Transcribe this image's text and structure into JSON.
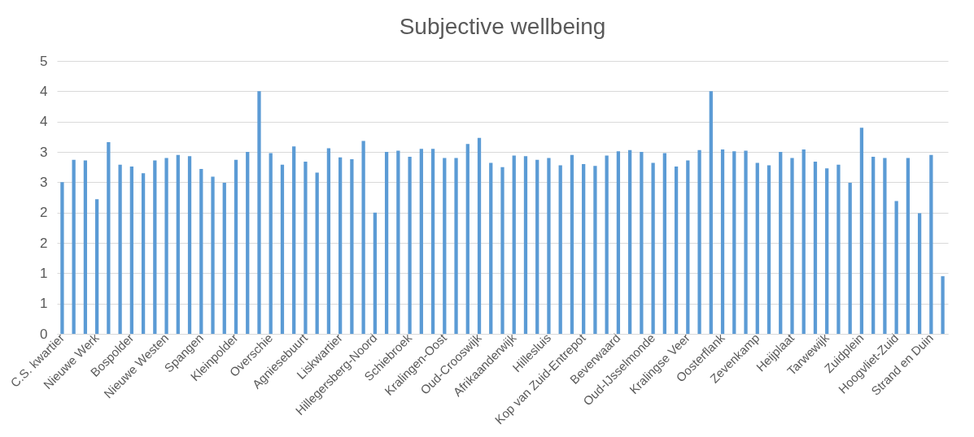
{
  "chart_data": {
    "type": "bar",
    "title": "Subjective wellbeing",
    "color": "#5b9bd5",
    "categories": [
      "C.S. kwartier",
      null,
      null,
      "Nieuwe Werk",
      null,
      null,
      "Bospolder",
      null,
      null,
      "Nieuwe Westen",
      null,
      null,
      "Spangen",
      null,
      null,
      "Kleinpolder",
      null,
      null,
      "Overschie",
      null,
      null,
      "Agniesebuurt",
      null,
      null,
      "Liskwartier",
      null,
      null,
      "Hillegersberg-Noord",
      null,
      null,
      "Schiebroek",
      null,
      null,
      "Kralingen-Oost",
      null,
      null,
      "Oud-Crooswijk",
      null,
      null,
      "Afrikaanderwijk",
      null,
      null,
      "Hillesluis",
      null,
      null,
      "Kop van Zuid-Entrepot",
      null,
      null,
      "Beverwaard",
      null,
      null,
      "Oud-IJsselmonde",
      null,
      null,
      "Kralingse Veer",
      null,
      null,
      "Oosterflank",
      null,
      null,
      "Zevenkamp",
      null,
      null,
      "Heijplaat",
      null,
      null,
      "Tarwewijk",
      null,
      null,
      "Zuidplein",
      null,
      null,
      "Hoogvliet-Zuid",
      null,
      null,
      "Strand en Duin",
      null
    ],
    "values": [
      2.5,
      2.87,
      2.86,
      2.22,
      3.16,
      2.79,
      2.76,
      2.65,
      2.86,
      2.9,
      2.95,
      2.93,
      2.72,
      2.59,
      2.49,
      2.87,
      3.0,
      4.0,
      2.98,
      2.79,
      3.09,
      2.84,
      2.66,
      3.06,
      2.91,
      2.88,
      3.18,
      2.0,
      3.0,
      3.02,
      2.92,
      3.05,
      3.05,
      2.9,
      2.9,
      3.13,
      3.23,
      2.82,
      2.75,
      2.94,
      2.93,
      2.87,
      2.9,
      2.78,
      2.95,
      2.8,
      2.77,
      2.94,
      3.01,
      3.03,
      3.0,
      2.82,
      2.98,
      2.76,
      2.86,
      3.03,
      4.0,
      3.04,
      3.01,
      3.02,
      2.82,
      2.78,
      3.0,
      2.9,
      3.04,
      2.84,
      2.73,
      2.79,
      2.49,
      3.4,
      2.92,
      2.9,
      2.19,
      2.9,
      1.99,
      2.95,
      0.95
    ],
    "ylim": [
      0,
      4.5
    ],
    "yticks": [
      0,
      {
        "value": 0.5,
        "label": "1"
      },
      1,
      {
        "value": 1.5,
        "label": "2"
      },
      2,
      {
        "value": 2.5,
        "label": "3"
      },
      3,
      {
        "value": 3.5,
        "label": "4"
      },
      4,
      {
        "value": 4.5,
        "label": "5"
      }
    ],
    "grid": "y"
  }
}
